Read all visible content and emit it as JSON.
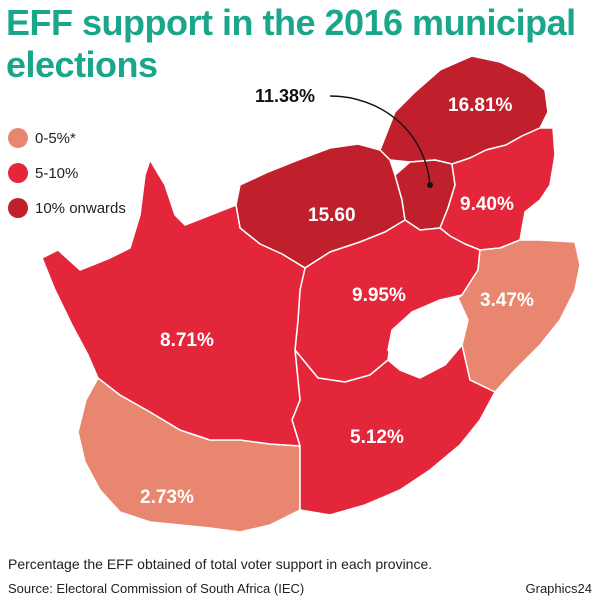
{
  "header": {
    "title": "EFF support in the 2016 municipal elections"
  },
  "colors": {
    "title": "#1aa68a",
    "low": "#e8866f",
    "mid": "#e4263a",
    "high": "#c0202c",
    "border": "#ffffff"
  },
  "legend": [
    {
      "label": "0-5%*",
      "color": "#e8866f"
    },
    {
      "label": "5-10%",
      "color": "#e4263a"
    },
    {
      "label": "10% onwards",
      "color": "#c0202c"
    }
  ],
  "provinces": [
    {
      "value_label": "16.81%",
      "value": 16.81,
      "band": "10% onwards"
    },
    {
      "value_label": "15.60",
      "value": 15.6,
      "band": "10% onwards"
    },
    {
      "value_label": "11.38%",
      "value": 11.38,
      "band": "10% onwards"
    },
    {
      "value_label": "9.40%",
      "value": 9.4,
      "band": "5-10%"
    },
    {
      "value_label": "9.95%",
      "value": 9.95,
      "band": "5-10%"
    },
    {
      "value_label": "3.47%",
      "value": 3.47,
      "band": "0-5%*"
    },
    {
      "value_label": "8.71%",
      "value": 8.71,
      "band": "5-10%"
    },
    {
      "value_label": "5.12%",
      "value": 5.12,
      "band": "5-10%"
    },
    {
      "value_label": "2.73%",
      "value": 2.73,
      "band": "0-5%*"
    }
  ],
  "footer": {
    "caption": "Percentage the EFF obtained of total voter support in each province.",
    "source": "Source: Electoral Commission of South Africa (IEC)",
    "credit": "Graphics24"
  }
}
